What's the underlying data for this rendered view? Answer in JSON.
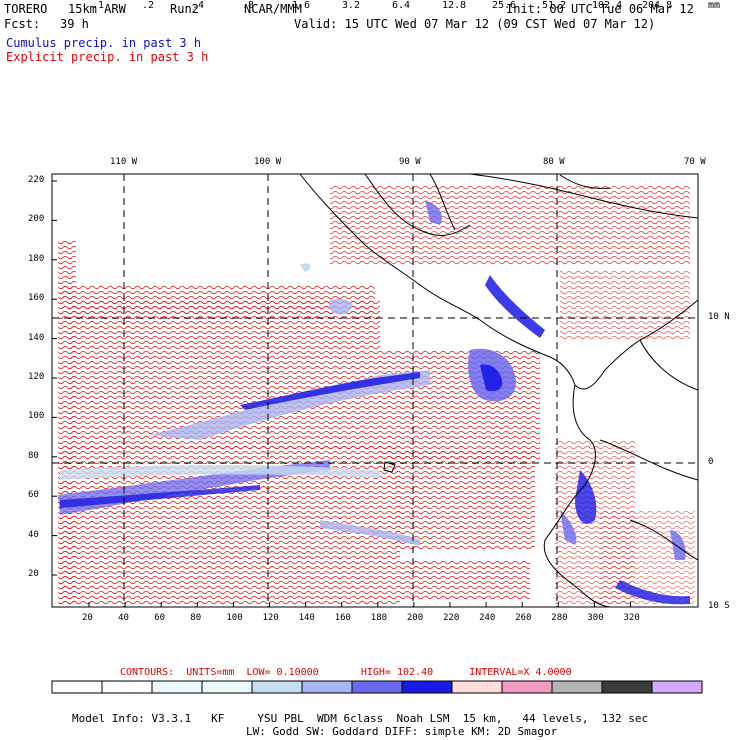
{
  "header": {
    "model": "TORERO",
    "resolution": "15km ARW",
    "run": "Run2",
    "org": "NCAR/MMM",
    "init": "Init: 00 UTC Tue 06 Mar 12",
    "fcst_label": "Fcst:",
    "fcst_value": "39 h",
    "valid": "Valid: 15 UTC Wed 07 Mar 12 (09 CST Wed 07 Mar 12)",
    "cumulus": "Cumulus precip. in past 3 h",
    "explicit": "Explicit precip. in past 3 h"
  },
  "map": {
    "lon_labels": [
      "110 W",
      "100 W",
      "90 W",
      "80 W",
      "70 W"
    ],
    "lat_labels": [
      "10 N",
      "0",
      "10 S"
    ],
    "y_ticks": [
      "220",
      "200",
      "180",
      "160",
      "140",
      "120",
      "100",
      "80",
      "60",
      "40",
      "20"
    ],
    "x_ticks": [
      "20",
      "40",
      "60",
      "80",
      "100",
      "120",
      "140",
      "160",
      "180",
      "200",
      "220",
      "240",
      "260",
      "280",
      "300",
      "320"
    ]
  },
  "contours": {
    "label": "CONTOURS:",
    "units": "UNITS=mm",
    "low": "LOW= 0.10000",
    "high": "HIGH= 102.40",
    "interval": "INTERVAL=X 4.0000"
  },
  "colorbar": {
    "labels": [
      ".1",
      ".2",
      ".4",
      ".8",
      "1.6",
      "3.2",
      "6.4",
      "12.8",
      "25.6",
      "51.2",
      "102.4",
      "204.8"
    ],
    "unit": "mm",
    "colors": [
      "#ffffff",
      "#ffffff",
      "#eaf8ff",
      "#e8fafa",
      "#c8dcf0",
      "#a8b4f0",
      "#6a6af0",
      "#1a1ae6",
      "#ffdcdc",
      "#f09cc0",
      "#b4b4b4",
      "#3c3c3c",
      "#d4a8ff"
    ]
  },
  "footer": {
    "line1": "Model Info: V3.3.1   KF     YSU PBL  WDM 6class  Noah LSM  15 km,   44 levels,  132 sec",
    "line2": "LW: Godd SW: Goddard DIFF: simple KM: 2D Smagor"
  }
}
